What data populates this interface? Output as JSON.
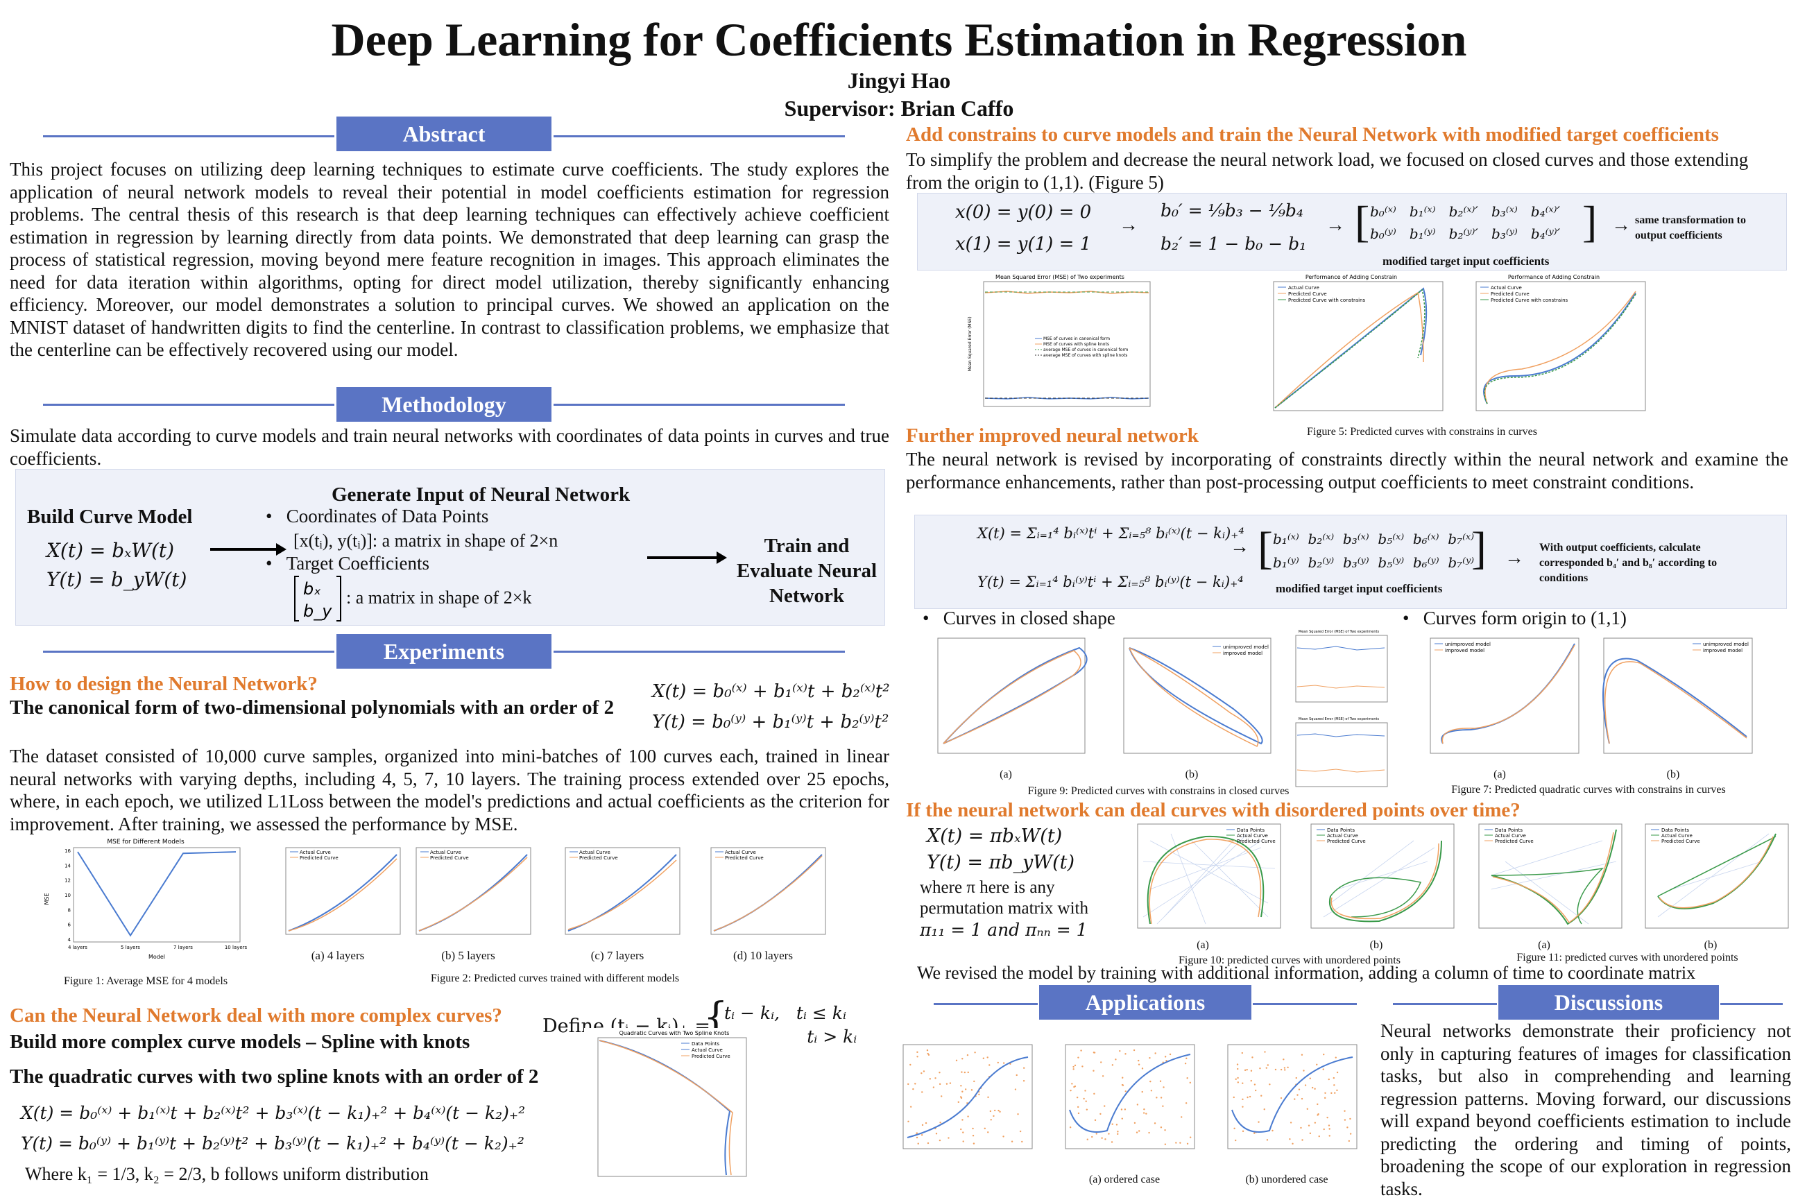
{
  "header": {
    "title": "Deep Learning for Coefficients Estimation in Regression",
    "author": "Jingyi Hao",
    "supervisor": "Supervisor: Brian Caffo"
  },
  "sections": {
    "abstract": "Abstract",
    "methodology": "Methodology",
    "experiments": "Experiments",
    "applications": "Applications",
    "discussions": "Discussions"
  },
  "abstract_text": "This project focuses on utilizing deep learning techniques to estimate curve coefficients. The study explores the application of neural network models to reveal their potential in model coefficients estimation for regression problems. The central thesis of this research is that deep learning techniques can effectively achieve coefficient estimation in regression by learning directly from data points. We demonstrated that deep learning can grasp the process of statistical regression, moving beyond mere feature recognition in images. This approach eliminates the need for data iteration within algorithms, opting for direct model utilization, thereby significantly enhancing efficiency. Moreover, our model demonstrates a solution to principal curves. We showed an application on the MNIST dataset of handwritten digits to find the centerline. In contrast to classification problems, we emphasize that the centerline can be effectively recovered using our model.",
  "methodology": {
    "intro": "Simulate data according to curve models and train neural networks with coordinates of data points in curves and true coefficients.",
    "build_title": "Build Curve Model",
    "eq_x": "X(t) = bₓW(t)",
    "eq_y": "Y(t) = b_yW(t)",
    "gen_title": "Generate Input of Neural Network",
    "bullet1": "Coordinates of Data Points",
    "bullet1_detail": "[x(tᵢ), y(tᵢ)]:  a matrix in shape of 2×n",
    "bullet2": "Target Coefficients",
    "bullet2_detail": ":  a matrix in shape of 2×k",
    "train_title": "Train and Evaluate Neural Network"
  },
  "experiments": {
    "q1": "How to design the Neural Network?",
    "q1_sub": "The canonical form of two-dimensional polynomials with an order of 2",
    "q1_eq_x": "X(t) = b₀⁽ˣ⁾ + b₁⁽ˣ⁾t + b₂⁽ˣ⁾t²",
    "q1_eq_y": "Y(t) = b₀⁽ʸ⁾ + b₁⁽ʸ⁾t + b₂⁽ʸ⁾t²",
    "dataset_text": "The dataset consisted of 10,000 curve samples, organized into mini-batches of 100 curves each, trained in linear neural networks with varying depths, including 4, 5, 7, 10 layers. The training process extended over 25 epochs, where, in each epoch, we utilized L1Loss between the model's predictions and actual coefficients as the criterion for improvement. After training, we assessed the performance by MSE.",
    "fig1_caption": "Figure 1: Average MSE for 4 models",
    "fig2_caption": "Figure 2: Predicted curves trained with different models",
    "fig2_sub": [
      "(a) 4 layers",
      "(b) 5 layers",
      "(c) 7 layers",
      "(d) 10 layers"
    ],
    "q2": "Can the Neural Network deal with more complex curves?",
    "q2_sub": "Build more complex curve models – Spline with knots",
    "define_label": "Define (tᵢ − kᵢ)₊ =",
    "define_case1": "tᵢ − kᵢ,   tᵢ ≤ kᵢ",
    "define_case2": "0,            tᵢ > kᵢ",
    "q2_sub2": "The quadratic curves with two spline knots with an order of 2",
    "spline_eq_x": "X(t) = b₀⁽ˣ⁾ + b₁⁽ˣ⁾t + b₂⁽ˣ⁾t² + b₃⁽ˣ⁾(t − k₁)₊² + b₄⁽ˣ⁾(t − k₂)₊²",
    "spline_eq_y": "Y(t) = b₀⁽ʸ⁾ + b₁⁽ʸ⁾t + b₂⁽ʸ⁾t² + b₃⁽ʸ⁾(t − k₁)₊² + b₄⁽ʸ⁾(t − k₂)₊²",
    "spline_where": "Where k₁ = 1/3, k₂ = 2/3, b follows uniform distribution"
  },
  "right": {
    "h1": "Add constrains to curve models and train the Neural Network with modified target coefficients",
    "h1_text": "To simplify the problem and decrease the neural network load, we focused on closed curves and those extending from the origin to (1,1). (Figure 5)",
    "c_eq1": "x(0) = y(0) = 0",
    "c_eq2": "x(1) = y(1) = 1",
    "c_eq3": "b₀′ = ¹⁄₉b₃ − ¹⁄₉b₄",
    "c_eq4": "b₂′ = 1 − b₀ − b₁",
    "matrix_row1": "b₀⁽ˣ⁾   b₁⁽ˣ⁾   b₂⁽ˣ⁾′   b₃⁽ˣ⁾   b₄⁽ˣ⁾′",
    "matrix_row2": "b₀⁽ʸ⁾   b₁⁽ʸ⁾   b₂⁽ʸ⁾′   b₃⁽ʸ⁾   b₄⁽ʸ⁾′",
    "matrix_label": "modified target input coefficients",
    "same_transform": "same transformation to output coefficients",
    "fig5_caption": "Figure 5: Predicted curves with constrains in curves",
    "h2": "Further improved neural network",
    "h2_text": "The neural network is revised by incorporating of constraints directly within the neural network and examine the performance enhancements, rather than post-processing output coefficients to meet constraint conditions.",
    "imp_eq_x": "X(t) = Σᵢ₌₁⁴ bᵢ⁽ˣ⁾tⁱ + Σᵢ₌₅⁸ bᵢ⁽ˣ⁾(t − kᵢ)₊⁴",
    "imp_eq_y": "Y(t) = Σᵢ₌₁⁴ bᵢ⁽ʸ⁾tⁱ + Σᵢ₌₅⁸ bᵢ⁽ʸ⁾(t − kᵢ)₊⁴",
    "imp_row1": "b₁⁽ˣ⁾  b₂⁽ˣ⁾  b₃⁽ˣ⁾  b₅⁽ˣ⁾  b₆⁽ˣ⁾  b₇⁽ˣ⁾",
    "imp_row2": "b₁⁽ʸ⁾  b₂⁽ʸ⁾  b₃⁽ʸ⁾  b₅⁽ʸ⁾  b₆⁽ʸ⁾  b₇⁽ʸ⁾",
    "imp_label": "modified target input coefficients",
    "imp_note": "With output coefficients, calculate corresponded b₄′ and b₈′ according to conditions",
    "bullet_closed": "Curves in closed shape",
    "bullet_origin": "Curves form origin to (1,1)",
    "fig9_caption": "Figure 9: Predicted curves with constrains in closed curves",
    "fig7_caption": "Figure 7: Predicted quadratic curves with constrains in curves",
    "sub_a": "(a)",
    "sub_b": "(b)",
    "h3": "If the neural network can deal curves with disordered points over time?",
    "dis_eq_x": "X(t) = πbₓW(t)",
    "dis_eq_y": "Y(t) = πb_yW(t)",
    "dis_text1": "where π here is any",
    "dis_text2": "permutation matrix with",
    "dis_text3": "π₁₁ = 1 and πₙₙ = 1",
    "fig10_caption": "Figure 10: predicted curves with unordered points",
    "fig11_caption": "Figure 11: predicted curves with unordered points",
    "revised_text": "We revised the model by training with additional information, adding a column of time to coordinate matrix",
    "app_sub_a": "(a) ordered case",
    "app_sub_b": "(b) unordered case",
    "discussion_text": "Neural networks demonstrate their proficiency not only in capturing features of images for classification tasks, but also in comprehending and learning regression patterns. Moving forward, our discussions will expand beyond coefficients estimation to include predicting the ordering and timing of points, broadening the scope of our exploration in regression tasks."
  },
  "plot_labels": {
    "fig1_title": "MSE for Different Models",
    "fig1_ylabel": "MSE",
    "fig1_xlabel": "Model",
    "actual": "Actual Curve",
    "predicted": "Predicted Curve",
    "spline_title": "Quadratic Curves with Two Spline Knots",
    "data_points": "Data Points",
    "mse_title": "Mean Squared Error (MSE) of Two experiments",
    "mse_ylabel": "Mean Squared Error (MSE)",
    "mse_leg1": "MSE of curves in canonical form",
    "mse_leg2": "MSE of curves with spline knots",
    "mse_leg3": "average MSE of curves in canonical form",
    "mse_leg4": "average MSE of curves with spline knots",
    "perf_title": "Performance of Adding Constrain",
    "pred_constrain": "Predicted Curve with constrains",
    "unimproved": "unimproved model",
    "improved": "improved model"
  },
  "colors": {
    "banner": "#5a74c4",
    "orange": "#e07a2d",
    "box": "#eef1f9",
    "blue_line": "#4a7bd0",
    "orange_line": "#f0a060",
    "green_line": "#3a9a4a"
  },
  "chart_data": [
    {
      "type": "line",
      "title": "MSE for Different Models",
      "xlabel": "Model",
      "ylabel": "MSE",
      "categories": [
        "4 layers",
        "5 layers",
        "7 layers",
        "10 layers"
      ],
      "values": [
        15.8,
        4.5,
        15.6,
        15.8
      ],
      "ylim": [
        4,
        16
      ]
    }
  ]
}
